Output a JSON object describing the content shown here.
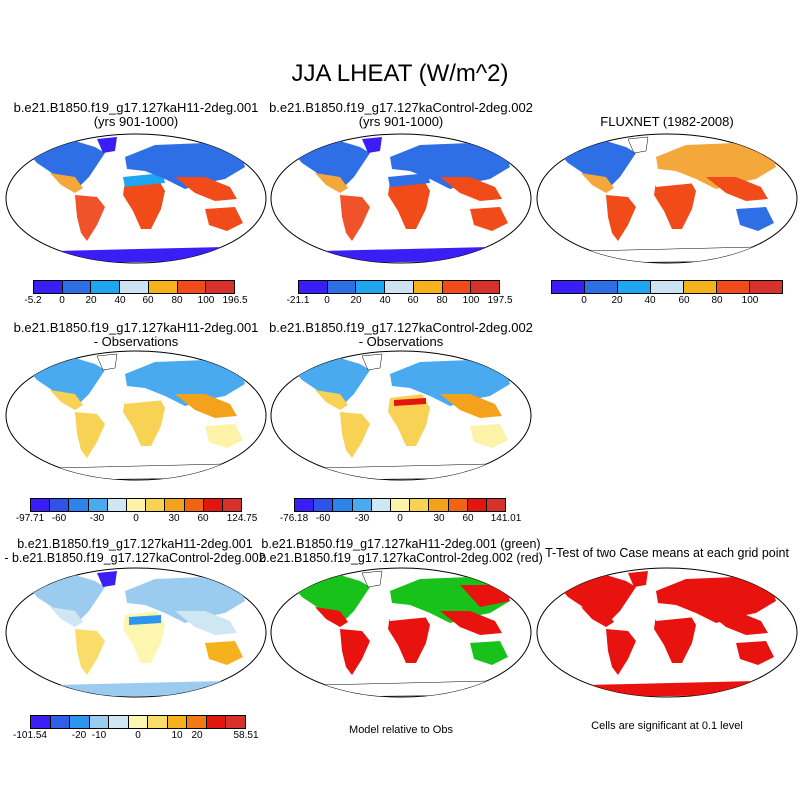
{
  "title": "JJA LHEAT (W/m^2)",
  "panels": {
    "r1c1": {
      "line1": "b.e21.B1850.f19_g17.127kaH11-2deg.001",
      "line2": "(yrs 901-1000)"
    },
    "r1c2": {
      "line1": "b.e21.B1850.f19_g17.127kaControl-2deg.002",
      "line2": "(yrs 901-1000)"
    },
    "r1c3": {
      "line1": "FLUXNET (1982-2008)"
    },
    "r2c1": {
      "line1": "b.e21.B1850.f19_g17.127kaH11-2deg.001",
      "line2": "- Observations"
    },
    "r2c2": {
      "line1": "b.e21.B1850.f19_g17.127kaControl-2deg.002",
      "line2": "- Observations"
    },
    "r3c1": {
      "line1": "b.e21.B1850.f19_g17.127kaH11-2deg.001",
      "line2": "- b.e21.B1850.f19_g17.127kaControl-2deg.002"
    },
    "r3c2": {
      "line1": "b.e21.B1850.f19_g17.127kaH11-2deg.001 (green)",
      "line2": "b.e21.B1850.f19_g17.127kaControl-2deg.002 (red)"
    },
    "r3c3": {
      "line1": "T-Test of two Case means at each grid point"
    }
  },
  "notes": {
    "model_relative": "Model relative to Obs",
    "significance": "Cells are significant at 0.1 level"
  },
  "colorbars": {
    "cb1": {
      "labels": [
        "-5.2",
        "0",
        "20",
        "40",
        "60",
        "80",
        "100",
        "196.5"
      ]
    },
    "cb2": {
      "labels": [
        "-21.1",
        "0",
        "20",
        "40",
        "60",
        "80",
        "100",
        "197.5"
      ]
    },
    "cb3": {
      "labels": [
        "0",
        "20",
        "40",
        "60",
        "80",
        "100"
      ]
    },
    "cb4": {
      "labels": [
        "-97.71",
        "-60",
        "-30",
        "0",
        "30",
        "60",
        "124.75"
      ]
    },
    "cb5": {
      "labels": [
        "-76.18",
        "-60",
        "-30",
        "0",
        "30",
        "60",
        "141.01"
      ]
    },
    "cb6": {
      "labels": [
        "-101.54",
        "-20",
        "-10",
        "0",
        "10",
        "20",
        "58.51"
      ]
    }
  },
  "colors": {
    "abs_scale": [
      "#3b1ef5",
      "#2f6fe6",
      "#1fa6f0",
      "#cbe3f3",
      "#f6b21c",
      "#f24b1a",
      "#d6312b"
    ],
    "diff_scale": [
      "#3b1ef5",
      "#2f52e8",
      "#2c84ea",
      "#4aaaf0",
      "#cfe6f3",
      "#fdf3a8",
      "#f8d255",
      "#f4a21c",
      "#f06414",
      "#e2150f",
      "#d6312b"
    ],
    "diff_scale_6": [
      "#3b1ef5",
      "#2f5fe6",
      "#2c96ee",
      "#9ccbf0",
      "#cfe6f3",
      "#fdf6b0",
      "#f9dc6a",
      "#f6b21c",
      "#f27a14",
      "#e2150f",
      "#d6312b"
    ],
    "green": "#18c21a",
    "red": "#e8120e",
    "land_dry": "#f4a73a",
    "land_wet": "#f0522a"
  }
}
